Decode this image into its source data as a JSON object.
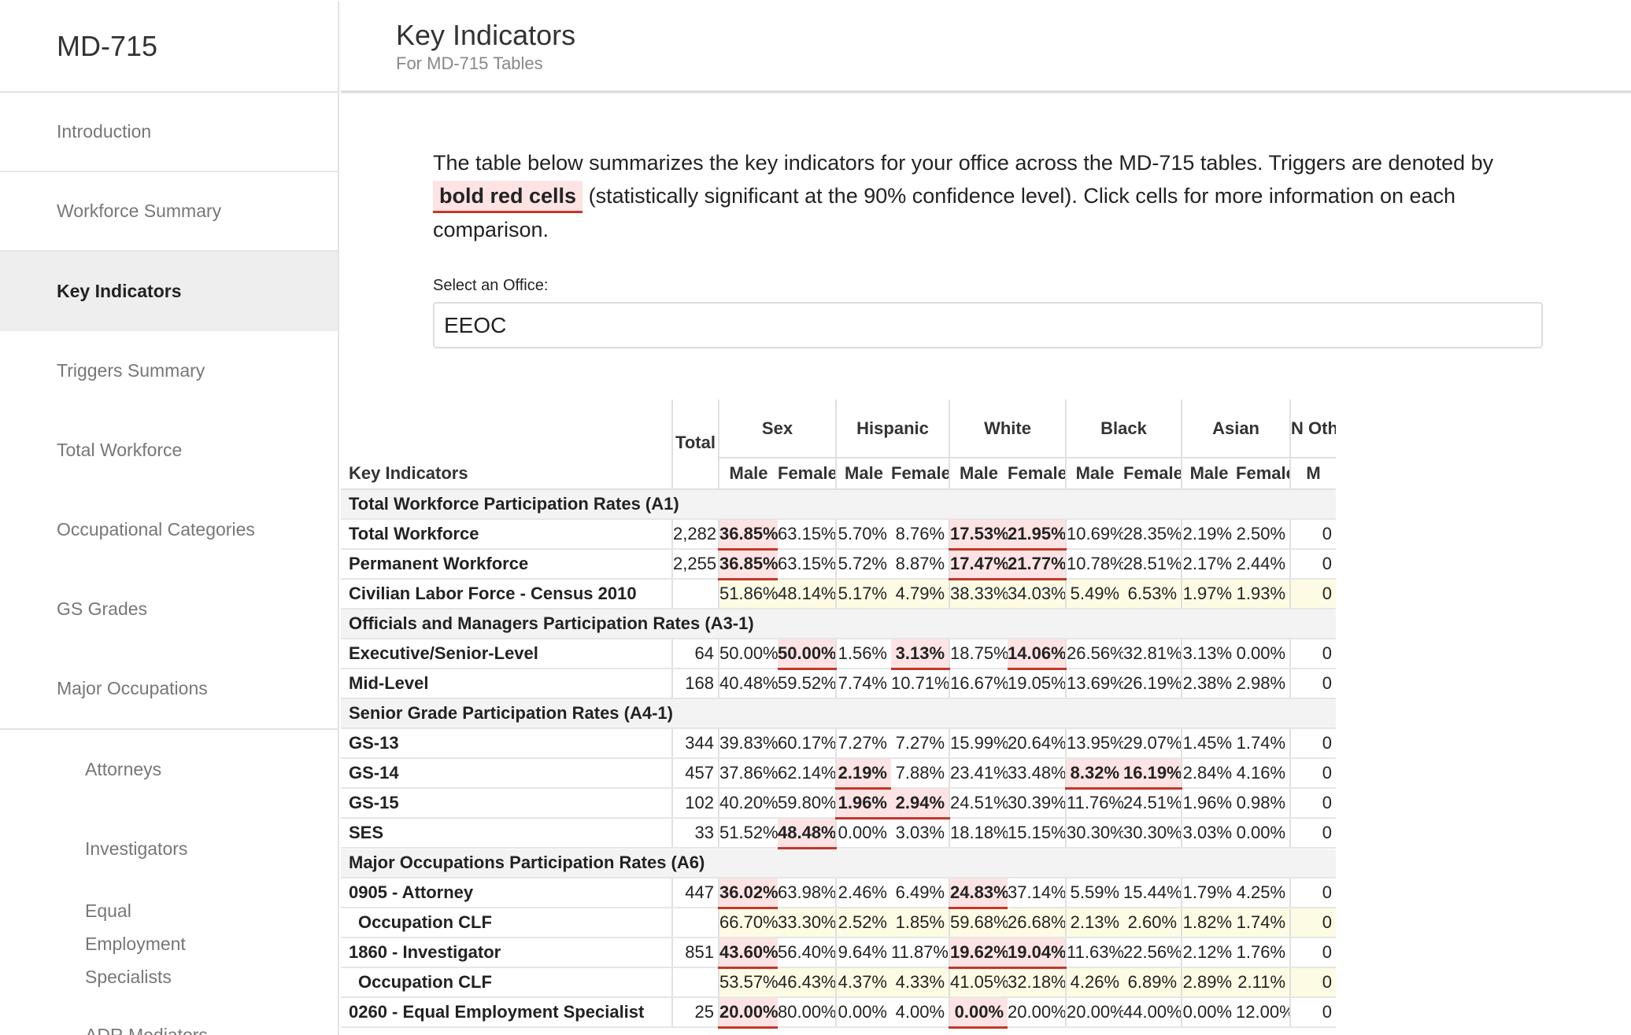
{
  "app": {
    "brand": "MD-715"
  },
  "sidebar": {
    "items": [
      {
        "label": "Introduction"
      },
      {
        "label": "Workforce Summary"
      },
      {
        "label": "Key Indicators"
      },
      {
        "label": "Triggers Summary"
      },
      {
        "label": "Total Workforce"
      },
      {
        "label": "Occupational Categories"
      },
      {
        "label": "GS Grades"
      },
      {
        "label": "Major Occupations"
      }
    ],
    "subitems": [
      {
        "label": "Attorneys"
      },
      {
        "label": "Investigators"
      },
      {
        "label": "Equal Employment Specialists"
      },
      {
        "label": "ADR Mediators"
      }
    ]
  },
  "header": {
    "title": "Key Indicators",
    "subtitle": "For MD-715 Tables"
  },
  "intro": {
    "text_before": "The table below summarizes the key indicators for your office across the MD-715 tables. Triggers are denoted by",
    "chip": "bold red cells",
    "text_after": "(statistically significant at the 90% confidence level). Click cells for more information on each comparison."
  },
  "selector": {
    "label": "Select an Office:",
    "value": "EEOC"
  },
  "colors": {
    "highlight_bg": "#fde3e3",
    "highlight_line": "#c0392b",
    "clf_bg": "#fdfbe3",
    "section_bg": "#f3f3f3"
  },
  "table": {
    "corner_label": "Key Indicators",
    "total_header": "Total",
    "groups": [
      "Sex",
      "Hispanic",
      "White",
      "Black",
      "Asian",
      "N Othe"
    ],
    "subheaders": [
      "Male",
      "Female",
      "Male",
      "Female",
      "Male",
      "Female",
      "Male",
      "Female",
      "Male",
      "Female",
      "M"
    ],
    "rows": [
      {
        "kind": "section",
        "label": "Total Workforce Participation Rates (A1)"
      },
      {
        "kind": "data",
        "label": "Total Workforce",
        "total": "2,282",
        "values": [
          "36.85%",
          "63.15%",
          "5.70%",
          "8.76%",
          "17.53%",
          "21.95%",
          "10.69%",
          "28.35%",
          "2.19%",
          "2.50%",
          "0"
        ],
        "hi": [
          0,
          4,
          5
        ]
      },
      {
        "kind": "data",
        "label": "Permanent Workforce",
        "total": "2,255",
        "values": [
          "36.85%",
          "63.15%",
          "5.72%",
          "8.87%",
          "17.47%",
          "21.77%",
          "10.78%",
          "28.51%",
          "2.17%",
          "2.44%",
          "0"
        ],
        "hi": [
          0,
          4,
          5
        ]
      },
      {
        "kind": "clf",
        "label": "Civilian Labor Force - Census 2010",
        "total": "",
        "values": [
          "51.86%",
          "48.14%",
          "5.17%",
          "4.79%",
          "38.33%",
          "34.03%",
          "5.49%",
          "6.53%",
          "1.97%",
          "1.93%",
          "0"
        ],
        "hi": []
      },
      {
        "kind": "section",
        "label": "Officials and Managers Participation Rates (A3-1)"
      },
      {
        "kind": "data",
        "label": "Executive/Senior-Level",
        "total": "64",
        "values": [
          "50.00%",
          "50.00%",
          "1.56%",
          "3.13%",
          "18.75%",
          "14.06%",
          "26.56%",
          "32.81%",
          "3.13%",
          "0.00%",
          "0"
        ],
        "hi": [
          1,
          3,
          5
        ]
      },
      {
        "kind": "data",
        "label": "Mid-Level",
        "total": "168",
        "values": [
          "40.48%",
          "59.52%",
          "7.74%",
          "10.71%",
          "16.67%",
          "19.05%",
          "13.69%",
          "26.19%",
          "2.38%",
          "2.98%",
          "0"
        ],
        "hi": []
      },
      {
        "kind": "section",
        "label": "Senior Grade Participation Rates (A4-1)"
      },
      {
        "kind": "data",
        "label": "GS-13",
        "total": "344",
        "values": [
          "39.83%",
          "60.17%",
          "7.27%",
          "7.27%",
          "15.99%",
          "20.64%",
          "13.95%",
          "29.07%",
          "1.45%",
          "1.74%",
          "0"
        ],
        "hi": []
      },
      {
        "kind": "data",
        "label": "GS-14",
        "total": "457",
        "values": [
          "37.86%",
          "62.14%",
          "2.19%",
          "7.88%",
          "23.41%",
          "33.48%",
          "8.32%",
          "16.19%",
          "2.84%",
          "4.16%",
          "0"
        ],
        "hi": [
          2,
          6,
          7
        ]
      },
      {
        "kind": "data",
        "label": "GS-15",
        "total": "102",
        "values": [
          "40.20%",
          "59.80%",
          "1.96%",
          "2.94%",
          "24.51%",
          "30.39%",
          "11.76%",
          "24.51%",
          "1.96%",
          "0.98%",
          "0"
        ],
        "hi": [
          2,
          3
        ]
      },
      {
        "kind": "data",
        "label": "SES",
        "total": "33",
        "values": [
          "51.52%",
          "48.48%",
          "0.00%",
          "3.03%",
          "18.18%",
          "15.15%",
          "30.30%",
          "30.30%",
          "3.03%",
          "0.00%",
          "0"
        ],
        "hi": [
          1
        ]
      },
      {
        "kind": "section",
        "label": "Major Occupations Participation Rates (A6)"
      },
      {
        "kind": "data",
        "label": "0905 - Attorney",
        "total": "447",
        "values": [
          "36.02%",
          "63.98%",
          "2.46%",
          "6.49%",
          "24.83%",
          "37.14%",
          "5.59%",
          "15.44%",
          "1.79%",
          "4.25%",
          "0"
        ],
        "hi": [
          0,
          4
        ]
      },
      {
        "kind": "clf",
        "label": "Occupation CLF",
        "indent": true,
        "total": "",
        "values": [
          "66.70%",
          "33.30%",
          "2.52%",
          "1.85%",
          "59.68%",
          "26.68%",
          "2.13%",
          "2.60%",
          "1.82%",
          "1.74%",
          "0"
        ],
        "hi": []
      },
      {
        "kind": "data",
        "label": "1860 - Investigator",
        "total": "851",
        "values": [
          "43.60%",
          "56.40%",
          "9.64%",
          "11.87%",
          "19.62%",
          "19.04%",
          "11.63%",
          "22.56%",
          "2.12%",
          "1.76%",
          "0"
        ],
        "hi": [
          0,
          4,
          5
        ]
      },
      {
        "kind": "clf",
        "label": "Occupation CLF",
        "indent": true,
        "total": "",
        "values": [
          "53.57%",
          "46.43%",
          "4.37%",
          "4.33%",
          "41.05%",
          "32.18%",
          "4.26%",
          "6.89%",
          "2.89%",
          "2.11%",
          "0"
        ],
        "hi": []
      },
      {
        "kind": "data",
        "label": "0260 - Equal Employment Specialist",
        "total": "25",
        "values": [
          "20.00%",
          "80.00%",
          "0.00%",
          "4.00%",
          "0.00%",
          "20.00%",
          "20.00%",
          "44.00%",
          "0.00%",
          "12.00%",
          "0"
        ],
        "hi": [
          0,
          4
        ]
      }
    ]
  }
}
